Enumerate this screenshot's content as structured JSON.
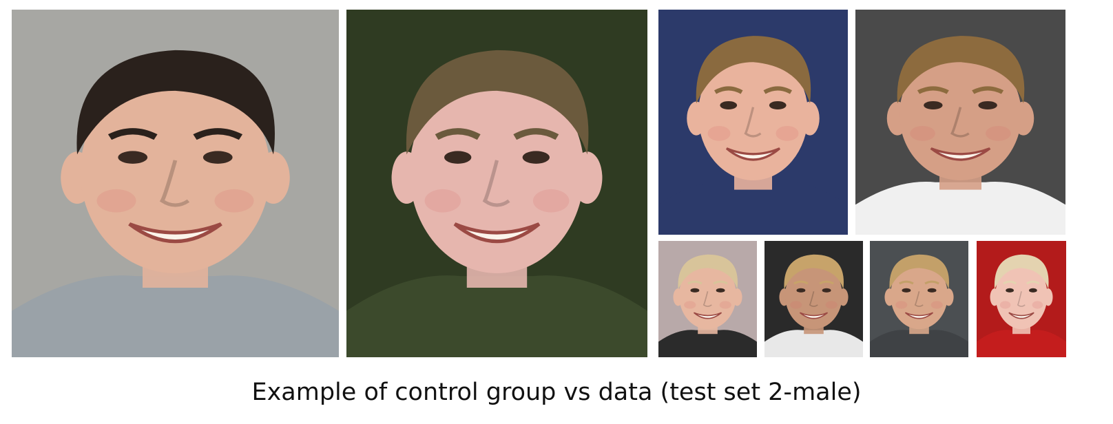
{
  "figure": {
    "caption": "Example of control group vs data (test set 2-male)",
    "panels": [
      {
        "id": "control",
        "background": "#a7a7a3",
        "skin": "#e3b39b",
        "hair": "#2a211c",
        "clothing": "#9aa2a8"
      },
      {
        "id": "data-1",
        "background": "#2f3b22",
        "skin": "#e6b6ae",
        "hair": "#6b5a3d",
        "clothing": "#3c4a2c"
      },
      {
        "id": "data-2",
        "background": "#2c3a6a",
        "skin": "#e9b39d",
        "hair": "#8a6a3f",
        "clothing": "#2c3a6a"
      },
      {
        "id": "data-3",
        "background": "#4a4a4a",
        "skin": "#d59f86",
        "hair": "#8d6b3e",
        "clothing": "#f0f0f0"
      },
      {
        "id": "data-4",
        "background": "#b8a9a9",
        "skin": "#e7b7a0",
        "hair": "#d8c49a",
        "clothing": "#2b2b2b"
      },
      {
        "id": "data-5",
        "background": "#2a2a2a",
        "skin": "#c79578",
        "hair": "#c7a36a",
        "clothing": "#e8e8e8"
      },
      {
        "id": "data-6",
        "background": "#4b4f52",
        "skin": "#d9a78a",
        "hair": "#c3a069",
        "clothing": "#3f4245"
      },
      {
        "id": "data-7",
        "background": "#b31b1b",
        "skin": "#f0c3b5",
        "hair": "#e4d3b0",
        "clothing": "#c41d1d"
      }
    ]
  }
}
